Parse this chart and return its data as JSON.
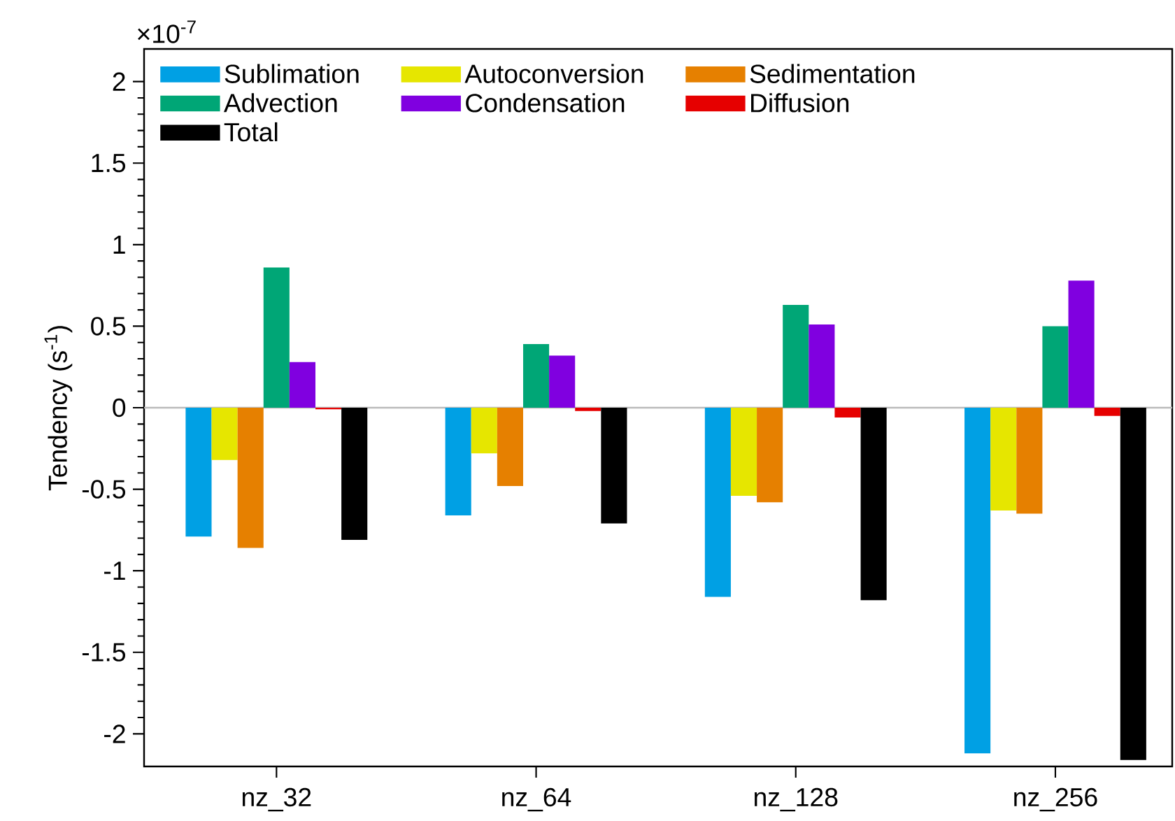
{
  "chart_data": {
    "type": "bar",
    "categories": [
      "nz_32",
      "nz_64",
      "nz_128",
      "nz_256"
    ],
    "ylabel": "Tendency (s$^{-1}$)",
    "annotations": [
      "×10$^{-7}$"
    ],
    "series": [
      {
        "name": "Sublimation",
        "color": "#00a0e4",
        "values": [
          -0.79,
          -0.66,
          -1.16,
          -2.12
        ]
      },
      {
        "name": "Autoconversion",
        "color": "#e6e600",
        "values": [
          -0.32,
          -0.28,
          -0.54,
          -0.63
        ]
      },
      {
        "name": "Sedimentation",
        "color": "#e68000",
        "values": [
          -0.86,
          -0.48,
          -0.58,
          -0.65
        ]
      },
      {
        "name": "Advection",
        "color": "#00a676",
        "values": [
          0.86,
          0.39,
          0.63,
          0.5
        ]
      },
      {
        "name": "Condensation",
        "color": "#8000e0",
        "values": [
          0.28,
          0.32,
          0.51,
          0.78
        ]
      },
      {
        "name": "Diffusion",
        "color": "#e60000",
        "values": [
          -0.01,
          -0.02,
          -0.06,
          -0.05
        ]
      },
      {
        "name": "Total",
        "color": "#000000",
        "values": [
          -0.81,
          -0.71,
          -1.18,
          -2.16
        ]
      }
    ],
    "ylim": [
      -2.2,
      2.2
    ],
    "yticks": [
      -2,
      -1.5,
      -1,
      -0.5,
      0,
      0.5,
      1,
      1.5,
      2
    ],
    "ref_lines": [
      {
        "axis": "y",
        "value": 0,
        "color": "#bbbbbb"
      }
    ],
    "legend": "top left",
    "grid": false
  }
}
